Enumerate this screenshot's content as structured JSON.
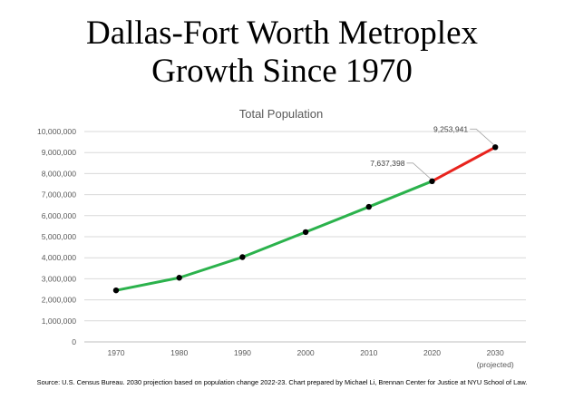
{
  "title_line1": "Dallas-Fort Worth Metroplex",
  "title_line2": "Growth Since 1970",
  "footer": "Source: U.S. Census Bureau. 2030 projection based on population  change 2022-23. Chart prepared by Michael Li, Brennan Center for Justice at NYU School of Law.",
  "chart_data": {
    "type": "line",
    "title": "Total Population",
    "xlabel": "",
    "ylabel": "",
    "categories": [
      "1970",
      "1980",
      "1990",
      "2000",
      "2010",
      "2020",
      "2030"
    ],
    "category_sublabels": [
      "",
      "",
      "",
      "",
      "",
      "",
      "(projected)"
    ],
    "ylim": [
      0,
      10000000
    ],
    "yticks": [
      0,
      1000000,
      2000000,
      3000000,
      4000000,
      5000000,
      6000000,
      7000000,
      8000000,
      9000000,
      10000000
    ],
    "ytick_labels": [
      "0",
      "1,000,000",
      "2,000,000",
      "3,000,000",
      "4,000,000",
      "5,000,000",
      "6,000,000",
      "7,000,000",
      "8,000,000",
      "9,000,000",
      "10,000,000"
    ],
    "grid": true,
    "series": [
      {
        "name": "Total Population",
        "values": [
          2450000,
          3050000,
          4030000,
          5220000,
          6420000,
          7637398,
          9253941
        ],
        "color": "#2bb24c",
        "projected_color": "#e8231d",
        "projected_from_index": 5
      }
    ],
    "annotations": [
      {
        "index": 5,
        "label": "7,637,398"
      },
      {
        "index": 6,
        "label": "9,253,941"
      }
    ]
  }
}
